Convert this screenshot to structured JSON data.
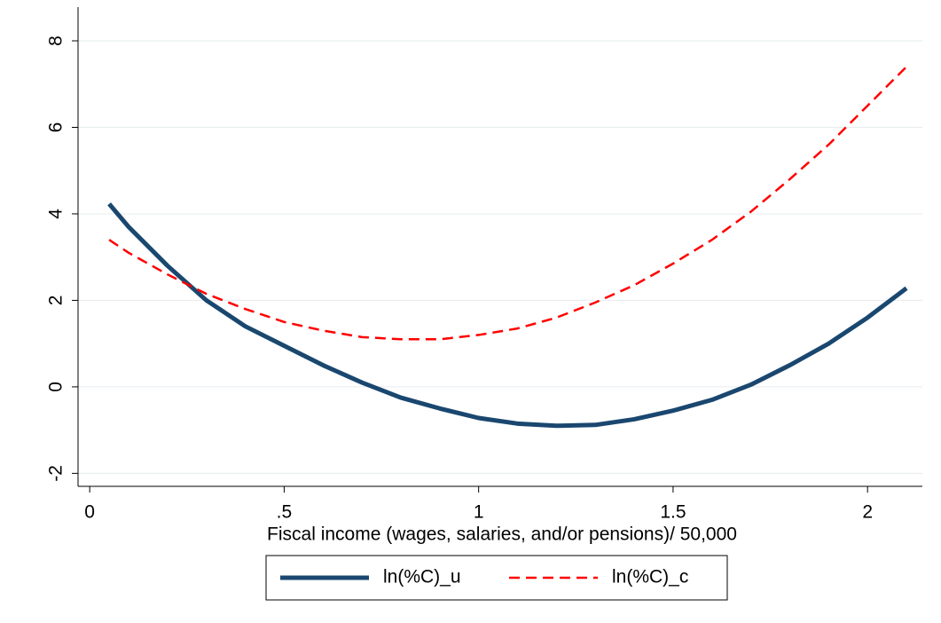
{
  "chart_data": {
    "type": "line",
    "x_label": "Fiscal income (wages, salaries, and/or pensions)/ 50,000",
    "x": [
      0.05,
      0.1,
      0.2,
      0.3,
      0.4,
      0.5,
      0.6,
      0.7,
      0.8,
      0.9,
      1.0,
      1.1,
      1.2,
      1.3,
      1.4,
      1.5,
      1.6,
      1.7,
      1.8,
      1.9,
      2.0,
      2.1
    ],
    "series": [
      {
        "name": "ln(%C)_u",
        "color": "#1a476f",
        "line_style": "solid",
        "values": [
          4.23,
          3.7,
          2.8,
          2.0,
          1.4,
          0.95,
          0.5,
          0.1,
          -0.25,
          -0.5,
          -0.72,
          -0.85,
          -0.9,
          -0.88,
          -0.75,
          -0.55,
          -0.3,
          0.05,
          0.5,
          1.0,
          1.6,
          2.28
        ]
      },
      {
        "name": "ln(%C)_c",
        "color": "#ff0000",
        "line_style": "dashed",
        "values": [
          3.4,
          3.1,
          2.6,
          2.15,
          1.8,
          1.5,
          1.3,
          1.15,
          1.1,
          1.1,
          1.2,
          1.35,
          1.6,
          1.95,
          2.35,
          2.85,
          3.4,
          4.05,
          4.8,
          5.6,
          6.5,
          7.4
        ]
      }
    ],
    "xlim": [
      -0.03,
      2.141
    ],
    "xticks": [
      0,
      {
        "value": 0.5,
        "label": ".5"
      },
      1,
      1.5,
      2
    ],
    "ylim": [
      -2.3,
      8.78
    ],
    "yticks": [
      -2,
      0,
      2,
      4,
      6,
      8
    ],
    "grid": true,
    "legend": "bottom"
  }
}
